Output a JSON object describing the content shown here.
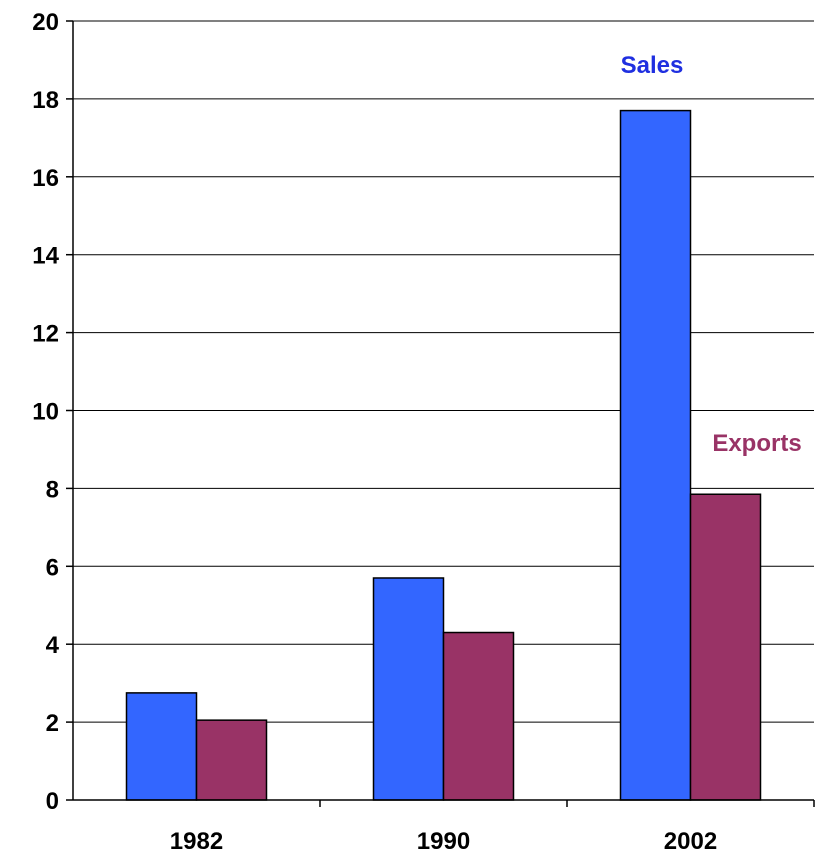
{
  "chart_data": {
    "type": "bar",
    "categories": [
      "1982",
      "1990",
      "2002"
    ],
    "series": [
      {
        "name": "Sales",
        "values": [
          2.75,
          5.7,
          17.7
        ],
        "color": "#3366FF"
      },
      {
        "name": "Exports",
        "values": [
          2.05,
          4.3,
          7.85
        ],
        "color": "#993366"
      }
    ],
    "ylim": [
      0,
      20
    ],
    "yticks": [
      "0",
      "2",
      "4",
      "6",
      "8",
      "10",
      "12",
      "14",
      "16",
      "18",
      "20"
    ],
    "grid": true,
    "legend": "inline labels above 2002 bars"
  }
}
